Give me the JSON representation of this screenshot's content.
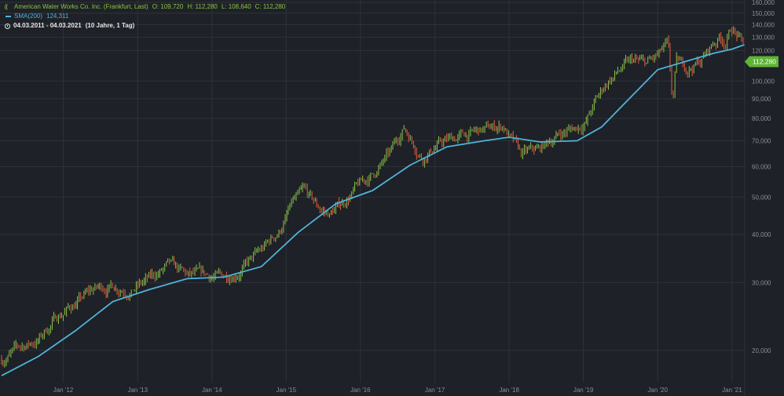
{
  "legend": {
    "title": "American Water Works Co. Inc. (Frankfurt, Last)",
    "open": "O: 109,720",
    "high": "H: 112,280",
    "low": "L: 108,640",
    "close": "C: 112,280",
    "sma_label": "SMA(200)",
    "sma_value": "124,311",
    "range": "04.03.2011 - 04.03.2021",
    "range_note": "(10 Jahre, 1 Tag)"
  },
  "colors": {
    "background": "#1e2127",
    "grid": "#2e323a",
    "up": "#8bc34a",
    "down": "#e0603f",
    "sma": "#4fb3d9",
    "badge": "#5fb336",
    "axis_text": "#8a8e96"
  },
  "chart_data": {
    "type": "line",
    "y_scale": "log",
    "ylim": [
      16.5,
      160
    ],
    "x_range": [
      "2011-03-04",
      "2021-03-04"
    ],
    "y_ticks": [
      {
        "v": 160,
        "label": "160,000"
      },
      {
        "v": 150,
        "label": "150,000"
      },
      {
        "v": 140,
        "label": "140,000"
      },
      {
        "v": 130,
        "label": "130,000"
      },
      {
        "v": 120,
        "label": "120,000"
      },
      {
        "v": 100,
        "label": "100,000"
      },
      {
        "v": 90,
        "label": "90,000"
      },
      {
        "v": 80,
        "label": "80,000"
      },
      {
        "v": 70,
        "label": "70,000"
      },
      {
        "v": 60,
        "label": "60,000"
      },
      {
        "v": 50,
        "label": "50,000"
      },
      {
        "v": 40,
        "label": "40,000"
      },
      {
        "v": 30,
        "label": "30,000"
      },
      {
        "v": 20,
        "label": "20,000"
      }
    ],
    "x_ticks": [
      {
        "date": "2012-01-01",
        "label": "Jan '12"
      },
      {
        "date": "2013-01-01",
        "label": "Jan '13"
      },
      {
        "date": "2014-01-01",
        "label": "Jan '14"
      },
      {
        "date": "2015-01-01",
        "label": "Jan '15"
      },
      {
        "date": "2016-01-01",
        "label": "Jan '16"
      },
      {
        "date": "2017-01-01",
        "label": "Jan '17"
      },
      {
        "date": "2018-01-01",
        "label": "Jan '18"
      },
      {
        "date": "2019-01-01",
        "label": "Jan '19"
      },
      {
        "date": "2020-01-01",
        "label": "Jan '20"
      },
      {
        "date": "2021-01-01",
        "label": "Jan '21"
      }
    ],
    "last_price": {
      "value": 112.28,
      "label": "112,280"
    },
    "series": [
      {
        "name": "American Water Works Co. Inc. (Frankfurt, Last)",
        "style": "ohlc",
        "x": [
          "2011-03-04",
          "2011-06-01",
          "2011-09-01",
          "2011-12-01",
          "2012-03-01",
          "2012-06-01",
          "2012-09-01",
          "2012-12-01",
          "2013-03-01",
          "2013-06-01",
          "2013-09-01",
          "2013-12-01",
          "2014-03-01",
          "2014-06-01",
          "2014-09-01",
          "2014-12-01",
          "2015-02-01",
          "2015-04-01",
          "2015-06-01",
          "2015-08-01",
          "2015-10-01",
          "2015-12-01",
          "2016-03-01",
          "2016-06-01",
          "2016-08-01",
          "2016-09-01",
          "2016-11-01",
          "2017-01-01",
          "2017-04-01",
          "2017-07-01",
          "2017-10-01",
          "2017-12-01",
          "2018-01-15",
          "2018-03-01",
          "2018-06-01",
          "2018-09-01",
          "2018-12-01",
          "2019-01-15",
          "2019-03-01",
          "2019-05-01",
          "2019-07-15",
          "2019-09-01",
          "2019-11-01",
          "2020-01-01",
          "2020-02-20",
          "2020-03-15",
          "2020-04-01",
          "2020-06-01",
          "2020-08-01",
          "2020-10-01",
          "2020-11-01",
          "2020-12-01",
          "2021-01-01",
          "2021-02-01",
          "2021-03-01",
          "2021-03-04"
        ],
        "values": [
          19.0,
          20.3,
          21.3,
          24.5,
          26.5,
          28.8,
          29.5,
          29.0,
          30.5,
          33.0,
          31.0,
          31.0,
          31.0,
          33.0,
          36.0,
          41.0,
          48.0,
          51.0,
          47.0,
          45.0,
          48.0,
          52.0,
          57.0,
          65.0,
          76.0,
          72.0,
          64.0,
          68.0,
          71.0,
          73.0,
          75.0,
          77.0,
          70.0,
          64.0,
          66.0,
          73.0,
          76.0,
          79.0,
          88.0,
          100.0,
          108.0,
          112.0,
          110.0,
          115.0,
          123.0,
          86.0,
          110.0,
          108.0,
          113.0,
          125.0,
          130.0,
          128.0,
          138.0,
          130.0,
          122.0,
          112.28
        ]
      },
      {
        "name": "SMA(200)",
        "style": "line",
        "x": [
          "2011-03-04",
          "2011-09-01",
          "2012-03-01",
          "2012-09-01",
          "2013-03-01",
          "2013-09-01",
          "2014-03-01",
          "2014-09-01",
          "2015-03-01",
          "2015-09-01",
          "2016-03-01",
          "2016-09-01",
          "2017-03-01",
          "2017-09-01",
          "2018-01-01",
          "2018-06-01",
          "2018-12-01",
          "2019-04-01",
          "2019-09-01",
          "2020-01-01",
          "2020-06-01",
          "2020-10-01",
          "2021-01-01",
          "2021-03-04"
        ],
        "values": [
          17.2,
          19.3,
          22.5,
          26.8,
          28.8,
          30.7,
          31.0,
          33.0,
          40.5,
          48.0,
          52.0,
          60.5,
          67.5,
          70.0,
          71.5,
          69.5,
          70.0,
          76.0,
          92.0,
          107.0,
          113.0,
          118.0,
          121.0,
          124.311
        ]
      }
    ]
  }
}
